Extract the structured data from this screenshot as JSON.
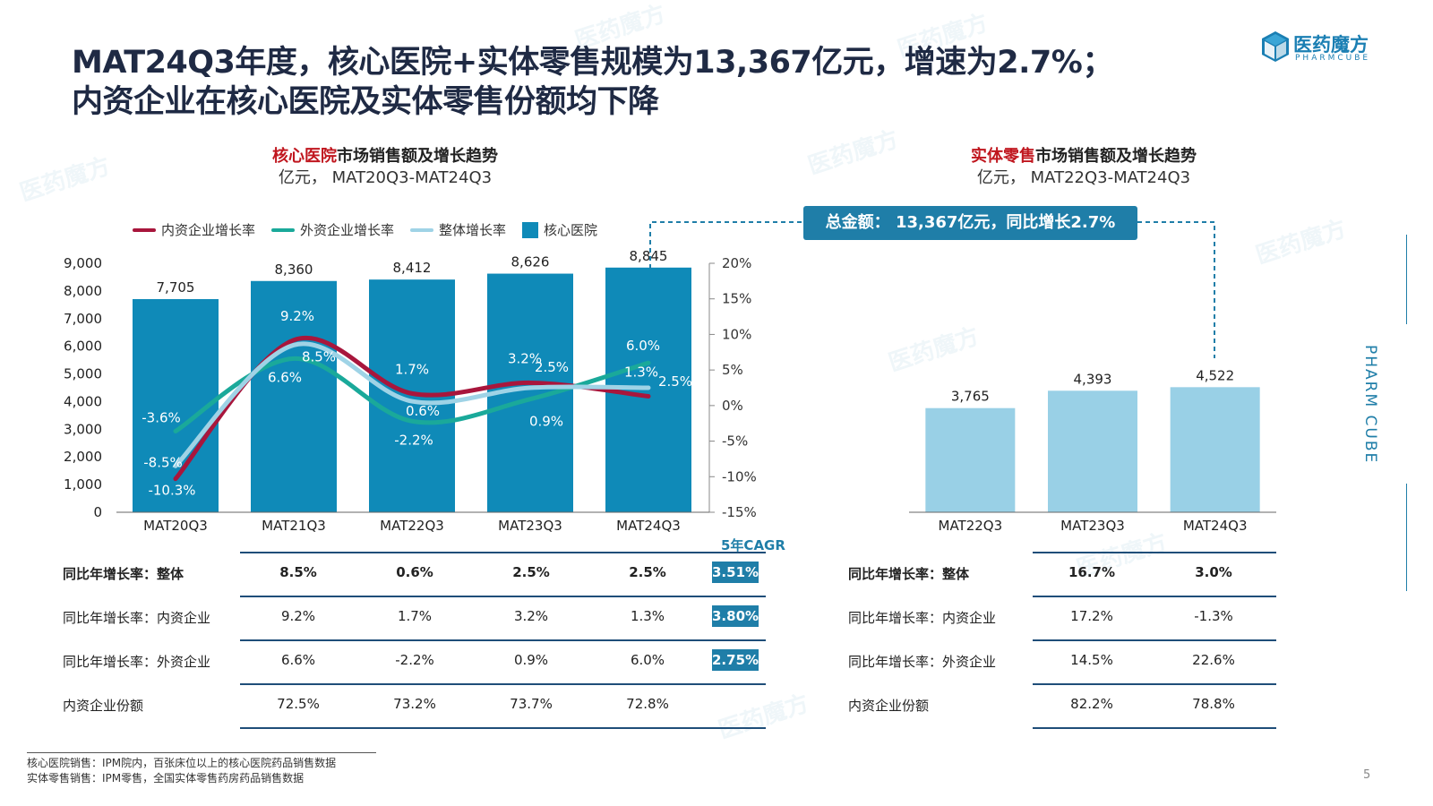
{
  "title_line1": "MAT24Q3年度，核心医院+实体零售规模为13,367亿元，增速为2.7%；",
  "title_line2": "内资企业在核心医院及实体零售份额均下降",
  "logo": {
    "name": "医药魔方",
    "sub": "PHARMCUBE"
  },
  "left_chart": {
    "title_red": "核心医院",
    "title_rest": "市场销售额及增长趋势",
    "subtitle": "亿元，  MAT20Q3-MAT24Q3"
  },
  "right_chart": {
    "title_red": "实体零售",
    "title_rest": "市场销售额及增长趋势",
    "subtitle": "亿元，  MAT22Q3-MAT24Q3"
  },
  "legend": {
    "domestic": "内资企业增长率",
    "foreign": "外资企业增长率",
    "overall": "整体增长率",
    "bar": "核心医院"
  },
  "callout": "总金额：  13,367亿元，同比增长2.7%",
  "cagr_header": "5年CAGR",
  "chart_data": [
    {
      "type": "bar",
      "name": "核心医院",
      "categories": [
        "MAT20Q3",
        "MAT21Q3",
        "MAT22Q3",
        "MAT23Q3",
        "MAT24Q3"
      ],
      "values": [
        7705,
        8360,
        8412,
        8626,
        8845
      ],
      "value_labels": [
        "7,705",
        "8,360",
        "8,412",
        "8,626",
        "8,845"
      ],
      "ylim": [
        0,
        9000
      ],
      "yticks": [
        "0",
        "1,000",
        "2,000",
        "3,000",
        "4,000",
        "5,000",
        "6,000",
        "7,000",
        "8,000",
        "9,000"
      ],
      "y2lim": [
        -15,
        20
      ],
      "y2ticks": [
        "-15%",
        "-10%",
        "-5%",
        "0%",
        "5%",
        "10%",
        "15%",
        "20%"
      ],
      "lines": [
        {
          "name": "内资企业增长率",
          "color": "#a8163c",
          "values": [
            -10.3,
            9.2,
            1.7,
            3.2,
            1.3
          ],
          "labels": [
            "-10.3%",
            "9.2%",
            "1.7%",
            "3.2%",
            "1.3%"
          ]
        },
        {
          "name": "外资企业增长率",
          "color": "#1aa99a",
          "values": [
            -3.6,
            6.6,
            -2.2,
            0.9,
            6.0
          ],
          "labels": [
            "-3.6%",
            "6.6%",
            "-2.2%",
            "0.9%",
            "6.0%"
          ]
        },
        {
          "name": "整体增长率",
          "color": "#9fd3e6",
          "values": [
            -8.5,
            8.5,
            0.6,
            2.5,
            2.5
          ],
          "labels": [
            "-8.5%",
            "8.5%",
            "0.6%",
            "2.5%",
            "2.5%"
          ]
        }
      ],
      "bar_color": "#0f8ab8"
    },
    {
      "type": "bar",
      "name": "实体零售",
      "categories": [
        "MAT22Q3",
        "MAT23Q3",
        "MAT24Q3"
      ],
      "values": [
        3765,
        4393,
        4522
      ],
      "value_labels": [
        "3,765",
        "4,393",
        "4,522"
      ],
      "ylim": [
        0,
        9000
      ],
      "bar_color": "#99d0e6"
    }
  ],
  "left_table": {
    "rows": [
      {
        "label": "同比年增长率：整体",
        "values": [
          "8.5%",
          "0.6%",
          "2.5%",
          "2.5%"
        ],
        "cagr": "3.51%"
      },
      {
        "label": "同比年增长率：内资企业",
        "values": [
          "9.2%",
          "1.7%",
          "3.2%",
          "1.3%"
        ],
        "cagr": "3.80%"
      },
      {
        "label": "同比年增长率：外资企业",
        "values": [
          "6.6%",
          "-2.2%",
          "0.9%",
          "6.0%"
        ],
        "cagr": "2.75%"
      },
      {
        "label": "内资企业份额",
        "values": [
          "72.5%",
          "73.2%",
          "73.7%",
          "72.8%"
        ],
        "cagr": ""
      }
    ]
  },
  "right_table": {
    "rows": [
      {
        "label": "同比年增长率：整体",
        "values": [
          "16.7%",
          "3.0%"
        ]
      },
      {
        "label": "同比年增长率：内资企业",
        "values": [
          "17.2%",
          "-1.3%"
        ]
      },
      {
        "label": "同比年增长率：外资企业",
        "values": [
          "14.5%",
          "22.6%"
        ]
      },
      {
        "label": "内资企业份额",
        "values": [
          "82.2%",
          "78.8%"
        ]
      }
    ]
  },
  "footnote": [
    "核心医院销售：IPM院内，百张床位以上的核心医院药品销售数据",
    "实体零售销售：IPM零售，全国实体零售药房药品销售数据"
  ],
  "page_number": "5",
  "side_brand": "PHARM CUBE"
}
